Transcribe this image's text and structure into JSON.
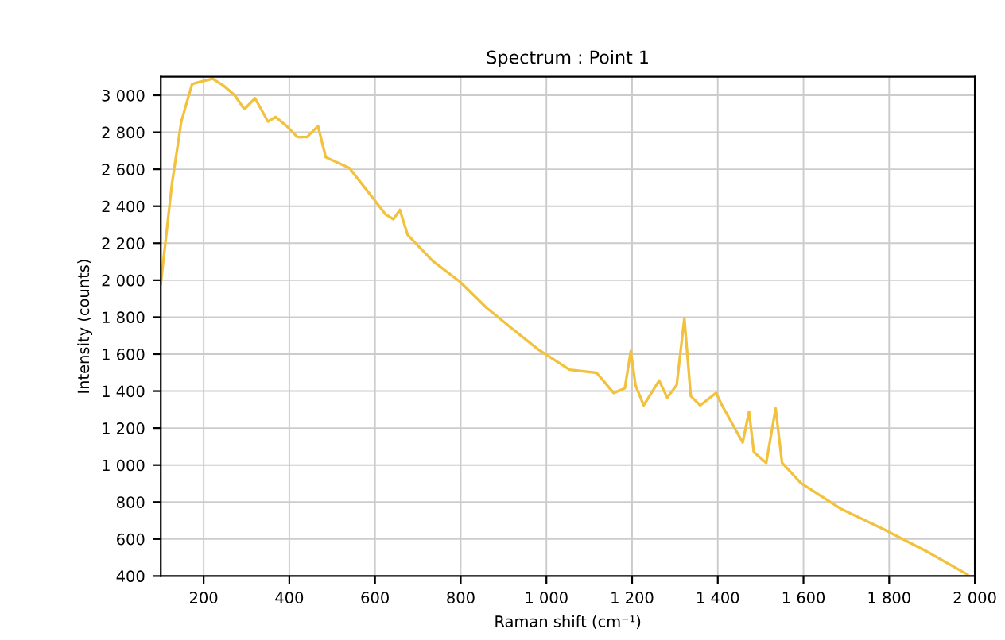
{
  "chart_data": {
    "type": "line",
    "title": "Spectrum : Point 1",
    "xlabel": "Raman shift (cm⁻¹)",
    "ylabel": "Intensity (counts)",
    "x": [
      100,
      126,
      148,
      173,
      184,
      221,
      247,
      272,
      295,
      320,
      350,
      368,
      394,
      419,
      441,
      467,
      485,
      540,
      577,
      625,
      643,
      658,
      676,
      735,
      797,
      860,
      918,
      981,
      1054,
      1117,
      1157,
      1183,
      1197,
      1208,
      1227,
      1263,
      1282,
      1304,
      1322,
      1337,
      1359,
      1396,
      1410,
      1458,
      1473,
      1484,
      1513,
      1535,
      1550,
      1594,
      1689,
      1788,
      1887,
      1983
    ],
    "series": [
      {
        "color": "#f2c23e",
        "values": [
          1980,
          2520,
          2860,
          3060,
          3068,
          3090,
          3051,
          3001,
          2925,
          2984,
          2858,
          2883,
          2833,
          2774,
          2774,
          2833,
          2665,
          2607,
          2498,
          2355,
          2330,
          2380,
          2246,
          2103,
          1994,
          1851,
          1742,
          1625,
          1516,
          1499,
          1390,
          1415,
          1617,
          1432,
          1323,
          1457,
          1365,
          1432,
          1793,
          1373,
          1323,
          1390,
          1323,
          1122,
          1289,
          1071,
          1012,
          1306,
          1012,
          903,
          761,
          652,
          534,
          408
        ]
      }
    ],
    "xlim": [
      100,
      2000
    ],
    "ylim": [
      400,
      3100
    ],
    "xticks": [
      200,
      400,
      600,
      800,
      {
        "value": 1000,
        "label": "1 000"
      },
      {
        "value": 1200,
        "label": "1 200"
      },
      {
        "value": 1400,
        "label": "1 400"
      },
      {
        "value": 1600,
        "label": "1 600"
      },
      {
        "value": 1800,
        "label": "1 800"
      },
      {
        "value": 2000,
        "label": "2 000"
      }
    ],
    "yticks": [
      400,
      600,
      800,
      {
        "value": 1000,
        "label": "1 000"
      },
      {
        "value": 1200,
        "label": "1 200"
      },
      {
        "value": 1400,
        "label": "1 400"
      },
      {
        "value": 1600,
        "label": "1 600"
      },
      {
        "value": 1800,
        "label": "1 800"
      },
      {
        "value": 2000,
        "label": "2 000"
      },
      {
        "value": 2200,
        "label": "2 200"
      },
      {
        "value": 2400,
        "label": "2 400"
      },
      {
        "value": 2600,
        "label": "2 600"
      },
      {
        "value": 2800,
        "label": "2 800"
      },
      {
        "value": 3000,
        "label": "3 000"
      }
    ],
    "grid": true,
    "marker": "none",
    "line_style": "solid"
  }
}
